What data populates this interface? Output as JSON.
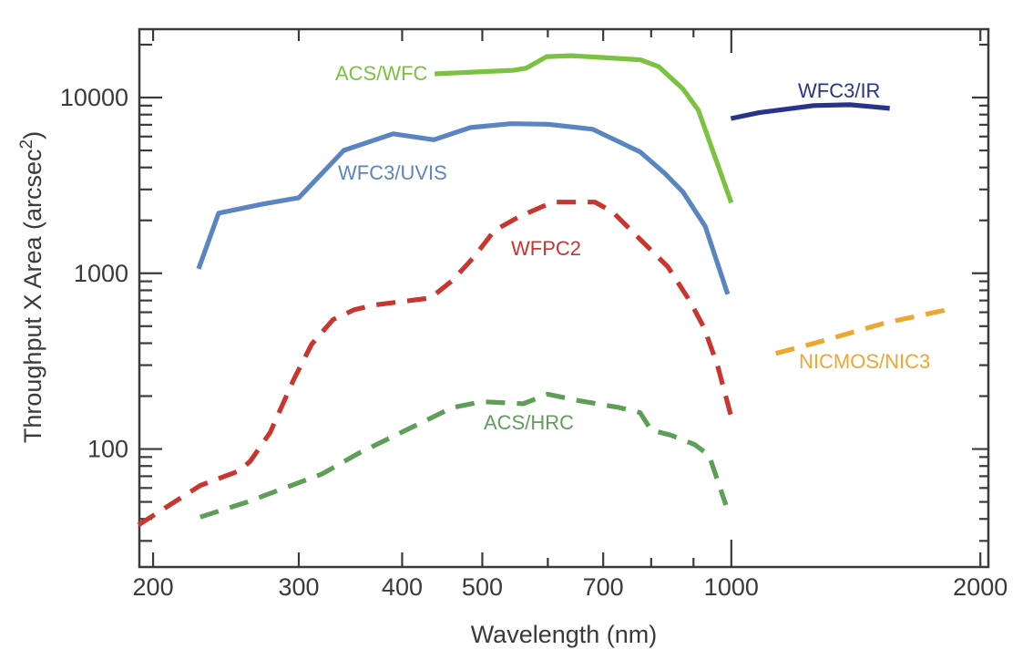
{
  "figure": {
    "background": "#ffffff",
    "frame_color": "#3a3a3a",
    "text_color": "#3a3a3a"
  },
  "chart_data": {
    "type": "line",
    "title": "",
    "xlabel": "Wavelength (nm)",
    "ylabel": "Throughput X Area (arcsec²)",
    "ylabel_parts": {
      "main": "Throughput X Area (arcsec",
      "sup": "2",
      "close": ")"
    },
    "x_scale": "log",
    "y_scale": "log",
    "xlim": [
      192.5,
      2045
    ],
    "ylim": [
      21.3,
      24500
    ],
    "grid": false,
    "legend": "inline-labels",
    "x_ticks": {
      "major": [
        200,
        300,
        400,
        500,
        700,
        1000,
        2000
      ],
      "labels": [
        "200",
        "300",
        "400",
        "500",
        "700",
        "1000",
        "2000"
      ],
      "minor": [
        600,
        800,
        900
      ],
      "decade": 1000
    },
    "y_ticks": {
      "decades": [
        100,
        1000,
        10000
      ],
      "labels": [
        "100",
        "1000",
        "10000"
      ]
    },
    "series": [
      {
        "name": "ACS/WFC",
        "slug": "acs-wfc",
        "color": "#7ac240",
        "style": "solid",
        "label": {
          "text": "ACS/WFC",
          "px": [
            368,
            88
          ]
        },
        "points": [
          [
            438,
            13650
          ],
          [
            545,
            14300
          ],
          [
            565,
            14700
          ],
          [
            598,
            17100
          ],
          [
            640,
            17300
          ],
          [
            700,
            16900
          ],
          [
            776,
            16400
          ],
          [
            817,
            15000
          ],
          [
            874,
            11200
          ],
          [
            912,
            8500
          ],
          [
            1000,
            2520
          ]
        ]
      },
      {
        "name": "WFC3/UVIS",
        "slug": "wfc3-uvis",
        "color": "#5b85c1",
        "style": "solid",
        "label": {
          "text": "WFC3/UVIS",
          "px": [
            371,
            197
          ]
        },
        "points": [
          [
            227,
            1060
          ],
          [
            240,
            2200
          ],
          [
            272,
            2480
          ],
          [
            300,
            2690
          ],
          [
            340,
            5000
          ],
          [
            390,
            6220
          ],
          [
            437,
            5750
          ],
          [
            484,
            6750
          ],
          [
            541,
            7100
          ],
          [
            600,
            7050
          ],
          [
            680,
            6600
          ],
          [
            776,
            4900
          ],
          [
            831,
            3700
          ],
          [
            874,
            2900
          ],
          [
            930,
            1850
          ],
          [
            990,
            760
          ]
        ]
      },
      {
        "name": "WFPC2",
        "slug": "wfpc2",
        "color": "#c8362f",
        "style": "dashed",
        "label": {
          "text": "WFPC2",
          "px": [
            561,
            280
          ]
        },
        "points": [
          [
            192,
            37
          ],
          [
            228,
            62
          ],
          [
            254,
            75
          ],
          [
            262,
            85
          ],
          [
            277,
            124
          ],
          [
            296,
            250
          ],
          [
            311,
            395
          ],
          [
            330,
            545
          ],
          [
            350,
            620
          ],
          [
            370,
            660
          ],
          [
            433,
            723
          ],
          [
            460,
            910
          ],
          [
            488,
            1230
          ],
          [
            517,
            1750
          ],
          [
            554,
            2100
          ],
          [
            608,
            2540
          ],
          [
            684,
            2540
          ],
          [
            719,
            2230
          ],
          [
            776,
            1560
          ],
          [
            838,
            1090
          ],
          [
            890,
            700
          ],
          [
            927,
            490
          ],
          [
            962,
            300
          ],
          [
            1000,
            152
          ]
        ]
      },
      {
        "name": "ACS/HRC",
        "slug": "acs-hrc",
        "color": "#5f9e58",
        "style": "dashed",
        "label": {
          "text": "ACS/HRC",
          "px": [
            531,
            471
          ]
        },
        "points": [
          [
            228,
            41
          ],
          [
            260,
            50
          ],
          [
            320,
            72
          ],
          [
            355,
            95
          ],
          [
            400,
            125
          ],
          [
            460,
            172
          ],
          [
            500,
            186
          ],
          [
            560,
            181
          ],
          [
            600,
            205
          ],
          [
            656,
            188
          ],
          [
            732,
            172
          ],
          [
            776,
            161
          ],
          [
            800,
            128
          ],
          [
            845,
            120
          ],
          [
            903,
            106
          ],
          [
            940,
            92
          ],
          [
            985,
            48
          ]
        ]
      },
      {
        "name": "WFC3/IR",
        "slug": "wfc3-ir",
        "color": "#28348c",
        "style": "solid",
        "label": {
          "text": "WFC3/IR",
          "px": [
            876,
            107
          ]
        },
        "points": [
          [
            999,
            7600
          ],
          [
            1080,
            8200
          ],
          [
            1257,
            9000
          ],
          [
            1391,
            9100
          ],
          [
            1470,
            8900
          ],
          [
            1554,
            8680
          ]
        ]
      },
      {
        "name": "NICMOS/NIC3",
        "slug": "nicmos-nic3",
        "color": "#eea730",
        "style": "dashed",
        "label": {
          "text": "NICMOS/NIC3",
          "px": [
            877,
            404
          ]
        },
        "points": [
          [
            1132,
            350
          ],
          [
            1280,
            408
          ],
          [
            1530,
            520
          ],
          [
            1824,
            621
          ]
        ]
      }
    ]
  }
}
